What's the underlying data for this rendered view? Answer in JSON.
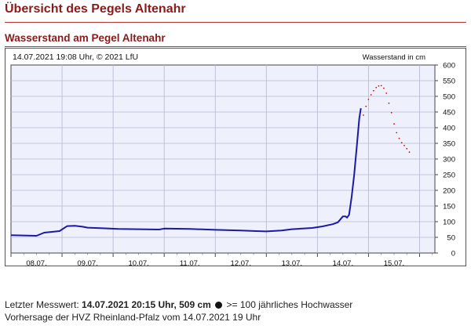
{
  "page": {
    "title": "Übersicht des Pegels Altenahr",
    "section_title": "Wasserstand am Pegel Altenahr"
  },
  "footer": {
    "line1_prefix": "Letzter Messwert:",
    "line1_value": "14.07.2021 20:15 Uhr, 509 cm",
    "line1_suffix": ">= 100 jährliches Hochwasser",
    "line2": "Vorhersage der HVZ Rheinland-Pfalz vom 14.07.2021 19 Uhr"
  },
  "colors": {
    "measured": "#1a1aa6",
    "forecast": "#cc1111",
    "plot_bg": "#eef0fb",
    "grid": "#b8bcd6",
    "title": "#8b1a1a"
  },
  "chart_data": {
    "type": "line",
    "timestamp_label": "14.07.2021 19:08 Uhr, © 2021 LfU",
    "ylabel": "Wasserstand in cm",
    "ylim": [
      0,
      600
    ],
    "yticks": [
      0,
      50,
      100,
      150,
      200,
      250,
      300,
      350,
      400,
      450,
      500,
      550,
      600
    ],
    "xlim": [
      7.5,
      15.8
    ],
    "xticks": [
      {
        "label": "08.07.",
        "x": 8.0
      },
      {
        "label": "09.07.",
        "x": 9.0
      },
      {
        "label": "10.07.",
        "x": 10.0
      },
      {
        "label": "11.07.",
        "x": 11.0
      },
      {
        "label": "12.07.",
        "x": 12.0
      },
      {
        "label": "13.07.",
        "x": 13.0
      },
      {
        "label": "14.07.",
        "x": 14.0
      },
      {
        "label": "15.07.",
        "x": 15.0
      }
    ],
    "grid": true,
    "series": [
      {
        "style": "measured",
        "x": [
          7.5,
          8.0,
          8.15,
          8.45,
          8.6,
          8.75,
          8.9,
          9.0,
          9.3,
          9.6,
          10.0,
          10.4,
          10.5,
          11.0,
          11.5,
          12.0,
          12.3,
          12.5,
          12.8,
          13.0,
          13.4,
          13.6,
          13.8,
          13.9,
          14.0,
          14.05,
          14.08,
          14.12,
          14.17,
          14.22,
          14.27,
          14.32,
          14.35
        ],
        "y": [
          57,
          55,
          65,
          70,
          86,
          87,
          84,
          81,
          79,
          77,
          76,
          75,
          78,
          77,
          74,
          72,
          70,
          69,
          72,
          76,
          80,
          85,
          92,
          98,
          117,
          117,
          113,
          122,
          180,
          250,
          340,
          430,
          462
        ]
      },
      {
        "style": "forecast",
        "x": [
          14.4,
          14.45,
          14.5,
          14.55,
          14.6,
          14.65,
          14.7,
          14.75,
          14.8,
          14.85,
          14.9,
          14.95,
          15.0,
          15.05,
          15.1,
          15.15,
          15.2,
          15.25,
          15.3
        ],
        "y": [
          440,
          468,
          490,
          505,
          518,
          528,
          533,
          534,
          526,
          510,
          478,
          448,
          412,
          384,
          366,
          352,
          343,
          333,
          322
        ]
      }
    ]
  }
}
